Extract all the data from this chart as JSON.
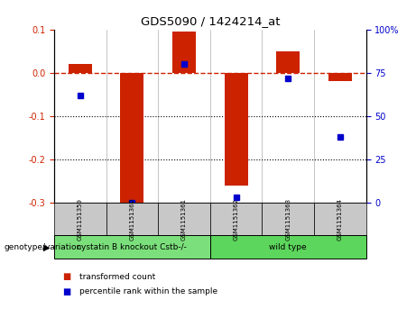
{
  "title": "GDS5090 / 1424214_at",
  "samples": [
    "GSM1151359",
    "GSM1151360",
    "GSM1151361",
    "GSM1151362",
    "GSM1151363",
    "GSM1151364"
  ],
  "red_values": [
    0.02,
    -0.3,
    0.095,
    -0.26,
    0.05,
    -0.02
  ],
  "blue_values": [
    62,
    0,
    80,
    3,
    72,
    38
  ],
  "ylim_left": [
    -0.3,
    0.1
  ],
  "ylim_right": [
    0,
    100
  ],
  "yticks_left": [
    -0.3,
    -0.2,
    -0.1,
    0.0,
    0.1
  ],
  "yticks_right": [
    0,
    25,
    50,
    75,
    100
  ],
  "groups": [
    {
      "label": "cystatin B knockout Cstb-/-",
      "indices": [
        0,
        1,
        2
      ],
      "color": "#7be07b"
    },
    {
      "label": "wild type",
      "indices": [
        3,
        4,
        5
      ],
      "color": "#5cd65c"
    }
  ],
  "group_label": "genotype/variation",
  "legend_red": "transformed count",
  "legend_blue": "percentile rank within the sample",
  "bar_color_red": "#cc2200",
  "bar_color_blue": "#0000cc",
  "dotted_line_color": "#000000",
  "zero_line_color": "#cc2200",
  "bar_width": 0.45,
  "background_color": "#ffffff",
  "plot_bg_color": "#ffffff",
  "sample_box_color": "#c8c8c8"
}
